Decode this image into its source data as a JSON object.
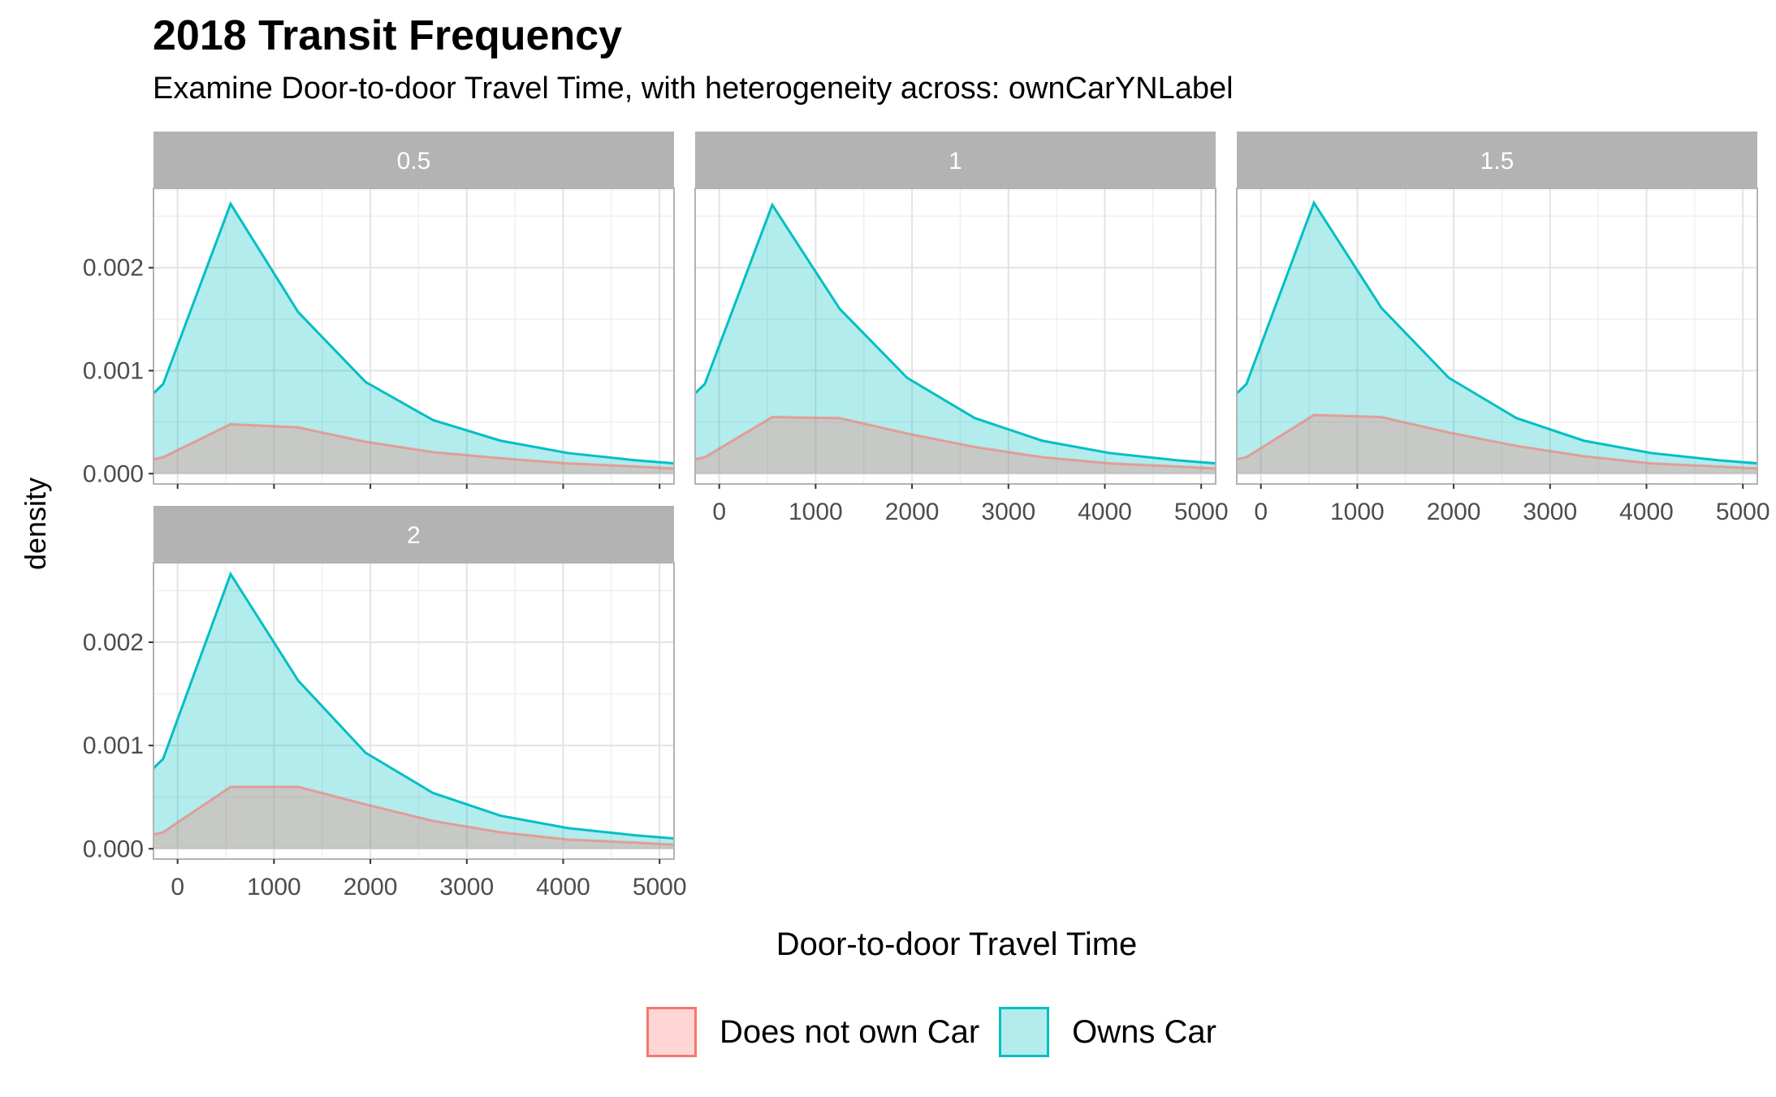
{
  "chart_data": {
    "type": "area",
    "title": "2018 Transit Frequency",
    "subtitle": "Examine Door-to-door Travel Time, with heterogeneity across: ownCarYNLabel",
    "xlabel": "Door-to-door Travel Time",
    "ylabel": "density",
    "xlim": [
      -250,
      5150
    ],
    "ylim": [
      -0.0001,
      0.00277
    ],
    "x_ticks": [
      "0",
      "1000",
      "2000",
      "3000",
      "4000",
      "5000"
    ],
    "y_ticks": [
      "0.000",
      "0.001",
      "0.002"
    ],
    "grid": true,
    "legend_position": "bottom",
    "legend": [
      {
        "label": "Does not own Car",
        "color": "#F8766D",
        "fill": "#FFD6D6"
      },
      {
        "label": "Owns Car",
        "color": "#00BFC4",
        "fill": "#B2ECEC"
      }
    ],
    "facets": [
      {
        "label": "0.5",
        "series": [
          {
            "name": "Owns Car",
            "x": [
              -250,
              -150,
              550,
              1250,
              1950,
              2650,
              3350,
              4050,
              4750,
              5150
            ],
            "y": [
              0.00078,
              0.00087,
              0.00262,
              0.00157,
              0.00089,
              0.00052,
              0.00032,
              0.0002,
              0.00013,
              0.0001
            ]
          },
          {
            "name": "Does not own Car",
            "x": [
              -250,
              -150,
              550,
              1250,
              1950,
              2650,
              3350,
              4050,
              4750,
              5150
            ],
            "y": [
              0.00014,
              0.00016,
              0.00048,
              0.00045,
              0.00031,
              0.00021,
              0.00015,
              0.0001,
              7e-05,
              5e-05
            ]
          }
        ]
      },
      {
        "label": "1",
        "series": [
          {
            "name": "Owns Car",
            "x": [
              -250,
              -150,
              550,
              1250,
              1950,
              2650,
              3350,
              4050,
              4750,
              5150
            ],
            "y": [
              0.00078,
              0.00087,
              0.00261,
              0.0016,
              0.00093,
              0.00054,
              0.00032,
              0.0002,
              0.00013,
              0.0001
            ]
          },
          {
            "name": "Does not own Car",
            "x": [
              -250,
              -150,
              550,
              1250,
              1950,
              2650,
              3350,
              4050,
              4750,
              5150
            ],
            "y": [
              0.00014,
              0.00016,
              0.00055,
              0.00054,
              0.00039,
              0.00026,
              0.00016,
              0.0001,
              7e-05,
              5e-05
            ]
          }
        ]
      },
      {
        "label": "1.5",
        "series": [
          {
            "name": "Owns Car",
            "x": [
              -250,
              -150,
              550,
              1250,
              1950,
              2650,
              3350,
              4050,
              4750,
              5150
            ],
            "y": [
              0.00078,
              0.00087,
              0.00263,
              0.00161,
              0.00093,
              0.00054,
              0.00032,
              0.0002,
              0.00013,
              0.0001
            ]
          },
          {
            "name": "Does not own Car",
            "x": [
              -250,
              -150,
              550,
              1250,
              1950,
              2650,
              3350,
              4050,
              4750,
              5150
            ],
            "y": [
              0.00014,
              0.00016,
              0.00057,
              0.00055,
              0.0004,
              0.00027,
              0.00017,
              0.0001,
              7e-05,
              5e-05
            ]
          }
        ]
      },
      {
        "label": "2",
        "series": [
          {
            "name": "Owns Car",
            "x": [
              -250,
              -150,
              550,
              1250,
              1950,
              2650,
              3350,
              4050,
              4750,
              5150
            ],
            "y": [
              0.00078,
              0.00087,
              0.00266,
              0.00163,
              0.00093,
              0.00054,
              0.00032,
              0.0002,
              0.00013,
              0.0001
            ]
          },
          {
            "name": "Does not own Car",
            "x": [
              -250,
              -150,
              550,
              1250,
              1950,
              2650,
              3350,
              4050,
              4750,
              5150
            ],
            "y": [
              0.00014,
              0.00016,
              0.0006,
              0.0006,
              0.00043,
              0.00027,
              0.00016,
              9e-05,
              6e-05,
              4e-05
            ]
          }
        ]
      }
    ]
  }
}
